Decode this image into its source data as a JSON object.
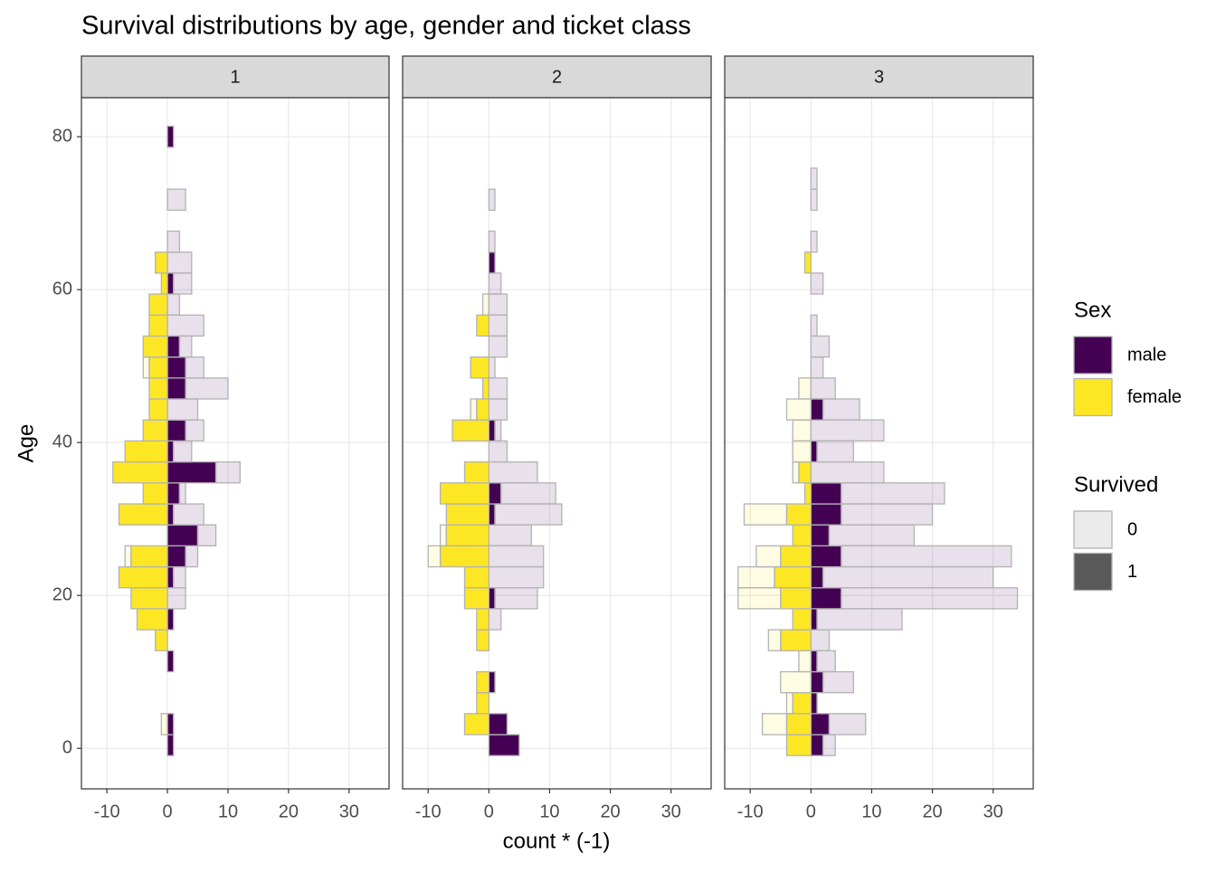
{
  "chart_data": {
    "type": "histogram",
    "title": "Survival distributions by age, gender and ticket class",
    "x_label": "count * (-1)",
    "y_label": "Age",
    "xlim": [
      -14.2,
      36.6
    ],
    "xticks": [
      -10,
      0,
      10,
      20,
      30
    ],
    "ylim": [
      -5.3,
      85.1
    ],
    "yticks": [
      0,
      20,
      40,
      60,
      80
    ],
    "grid": true,
    "bins": [
      -0.95,
      1.79,
      4.54,
      7.28,
      10.02,
      12.77,
      15.51,
      18.26,
      21.0,
      23.74,
      26.49,
      29.23,
      31.97,
      34.72,
      37.46,
      40.21,
      42.95,
      45.7,
      48.44,
      51.18,
      53.93,
      56.67,
      59.42,
      62.16,
      64.9,
      67.65,
      70.39,
      73.14,
      75.88,
      78.62,
      81.37
    ],
    "legends": [
      {
        "title": "Sex",
        "items": [
          {
            "label": "male",
            "color": "#440154"
          },
          {
            "label": "female",
            "color": "#FDE725"
          }
        ]
      },
      {
        "title": "Survived",
        "items": [
          {
            "label": "0",
            "opacity": 0.12
          },
          {
            "label": "1",
            "opacity": 1
          }
        ]
      }
    ],
    "facets": [
      {
        "label": "1",
        "series": [
          {
            "sex": "male",
            "survived": 1,
            "values": [
              1,
              1,
              0,
              0,
              1,
              0,
              1,
              0,
              1,
              3,
              5,
              1,
              2,
              8,
              1,
              3,
              0,
              3,
              3,
              2,
              0,
              0,
              1,
              0,
              0,
              0,
              0,
              0,
              0,
              1
            ]
          },
          {
            "sex": "male",
            "survived": 0,
            "values": [
              0,
              0,
              0,
              0,
              0,
              0,
              0,
              3,
              2,
              2,
              3,
              5,
              1,
              4,
              3,
              3,
              5,
              7,
              3,
              2,
              6,
              2,
              3,
              4,
              2,
              0,
              3,
              0,
              0,
              0
            ]
          },
          {
            "sex": "female",
            "survived": 1,
            "values": [
              0,
              0,
              0,
              0,
              0,
              -2,
              -5,
              -6,
              -8,
              -6,
              0,
              -8,
              -4,
              -9,
              -7,
              -4,
              -3,
              -3,
              -3,
              -4,
              -3,
              -3,
              -1,
              -2,
              0,
              0,
              0,
              0,
              0,
              0
            ]
          },
          {
            "sex": "female",
            "survived": 0,
            "values": [
              0,
              -1,
              0,
              0,
              0,
              0,
              0,
              0,
              0,
              -1,
              0,
              0,
              0,
              0,
              0,
              0,
              0,
              0,
              -1,
              0,
              0,
              0,
              0,
              0,
              0,
              0,
              0,
              0,
              0,
              0
            ]
          }
        ]
      },
      {
        "label": "2",
        "series": [
          {
            "sex": "male",
            "survived": 1,
            "values": [
              5,
              3,
              0,
              1,
              0,
              0,
              0,
              1,
              0,
              0,
              0,
              1,
              2,
              0,
              0,
              1,
              0,
              0,
              0,
              0,
              0,
              0,
              0,
              1,
              0,
              0,
              0,
              0,
              0,
              0
            ]
          },
          {
            "sex": "male",
            "survived": 0,
            "values": [
              0,
              0,
              0,
              0,
              0,
              0,
              2,
              7,
              9,
              9,
              7,
              11,
              9,
              8,
              3,
              1,
              3,
              3,
              1,
              3,
              3,
              3,
              2,
              0,
              1,
              0,
              1,
              0,
              0,
              0
            ]
          },
          {
            "sex": "female",
            "survived": 1,
            "values": [
              0,
              -4,
              -2,
              -2,
              0,
              -2,
              -2,
              -4,
              -4,
              -8,
              -7,
              -7,
              -8,
              -4,
              0,
              -6,
              -2,
              -1,
              -3,
              0,
              -2,
              0,
              0,
              0,
              0,
              0,
              0,
              0,
              0,
              0
            ]
          },
          {
            "sex": "female",
            "survived": 0,
            "values": [
              0,
              0,
              0,
              0,
              0,
              0,
              0,
              0,
              0,
              -2,
              -1,
              0,
              0,
              0,
              0,
              0,
              -1,
              0,
              0,
              0,
              0,
              -1,
              0,
              0,
              0,
              0,
              0,
              0,
              0,
              0
            ]
          }
        ]
      },
      {
        "label": "3",
        "series": [
          {
            "sex": "male",
            "survived": 1,
            "values": [
              2,
              3,
              1,
              2,
              1,
              0,
              1,
              5,
              2,
              5,
              3,
              5,
              5,
              0,
              1,
              0,
              2,
              0,
              0,
              0,
              0,
              0,
              0,
              0,
              0,
              0,
              0,
              0,
              0,
              0
            ]
          },
          {
            "sex": "male",
            "survived": 0,
            "values": [
              2,
              6,
              0,
              5,
              3,
              3,
              14,
              29,
              28,
              28,
              14,
              15,
              17,
              12,
              6,
              12,
              6,
              4,
              2,
              3,
              1,
              0,
              2,
              0,
              1,
              0,
              1,
              1,
              0,
              0
            ]
          },
          {
            "sex": "female",
            "survived": 1,
            "values": [
              -4,
              -4,
              -3,
              0,
              0,
              -5,
              -3,
              -5,
              -6,
              -5,
              -3,
              -4,
              -1,
              -2,
              0,
              0,
              0,
              0,
              0,
              0,
              0,
              0,
              0,
              -1,
              0,
              0,
              0,
              0,
              0,
              0
            ]
          },
          {
            "sex": "female",
            "survived": 0,
            "values": [
              0,
              -4,
              -1,
              -5,
              -2,
              -2,
              0,
              -7,
              -6,
              -4,
              0,
              -7,
              0,
              -1,
              -3,
              -3,
              -4,
              -2,
              0,
              0,
              0,
              0,
              0,
              0,
              0,
              0,
              0,
              0,
              0,
              0
            ]
          }
        ]
      }
    ]
  }
}
